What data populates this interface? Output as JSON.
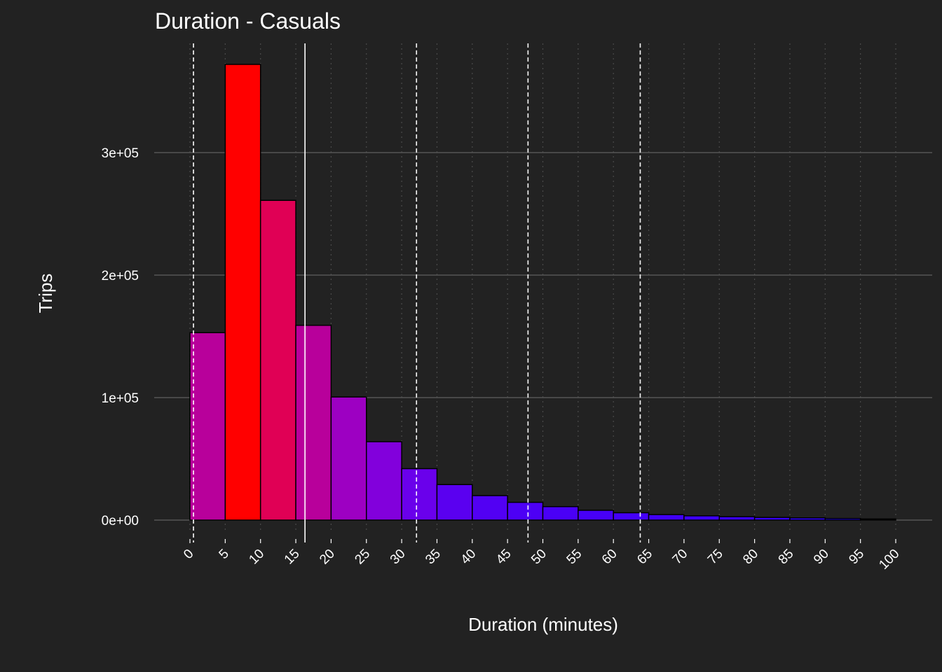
{
  "chart_data": {
    "type": "bar",
    "title": "Duration - Casuals",
    "xlabel": "Duration (minutes)",
    "ylabel": "Trips",
    "bin_width": 5,
    "bin_starts": [
      0,
      5,
      10,
      15,
      20,
      25,
      30,
      35,
      40,
      45,
      50,
      55,
      60,
      65,
      70,
      75,
      80,
      85,
      90,
      95
    ],
    "values": [
      153000,
      372000,
      261000,
      159000,
      100500,
      64000,
      42000,
      29000,
      20000,
      14500,
      11000,
      8000,
      6000,
      4500,
      3500,
      2800,
      2200,
      1800,
      1300,
      900
    ],
    "bar_colors": [
      "#B8009B",
      "#FF0000",
      "#E00055",
      "#B8009B",
      "#9D00C2",
      "#8200DC",
      "#6A00EB",
      "#5A00F0",
      "#5200F3",
      "#4D00F5",
      "#4A00F6",
      "#4700F7",
      "#4400F8",
      "#4100F9",
      "#3E00FA",
      "#3B00FB",
      "#3800FC",
      "#3000FD",
      "#2000FE",
      "#000000"
    ],
    "xlim": [
      0,
      100
    ],
    "ylim": [
      0,
      380000
    ],
    "x_ticks": [
      0,
      5,
      10,
      15,
      20,
      25,
      30,
      35,
      40,
      45,
      50,
      55,
      60,
      65,
      70,
      75,
      80,
      85,
      90,
      95,
      100
    ],
    "x_tick_labels": [
      "0",
      "5",
      "10",
      "15",
      "20",
      "25",
      "30",
      "35",
      "40",
      "45",
      "50",
      "55",
      "60",
      "65",
      "70",
      "75",
      "80",
      "85",
      "90",
      "95",
      "100"
    ],
    "y_ticks": [
      0,
      100000,
      200000,
      300000
    ],
    "y_tick_labels": [
      "0e+00",
      "1e+05",
      "2e+05",
      "3e+05"
    ],
    "reference_lines": [
      {
        "x": 0.5,
        "style": "dashed"
      },
      {
        "x": 16.3,
        "style": "solid"
      },
      {
        "x": 32.1,
        "style": "dashed"
      },
      {
        "x": 47.9,
        "style": "dashed"
      },
      {
        "x": 63.8,
        "style": "dashed"
      }
    ],
    "grid": true,
    "legend": "none",
    "colors": {
      "background": "#222222",
      "grid_major": "#555555",
      "grid_minor": "#4a4a4a",
      "text": "#ffffff",
      "bar_outline": "#000000",
      "reference_line": "#ffffff"
    }
  }
}
